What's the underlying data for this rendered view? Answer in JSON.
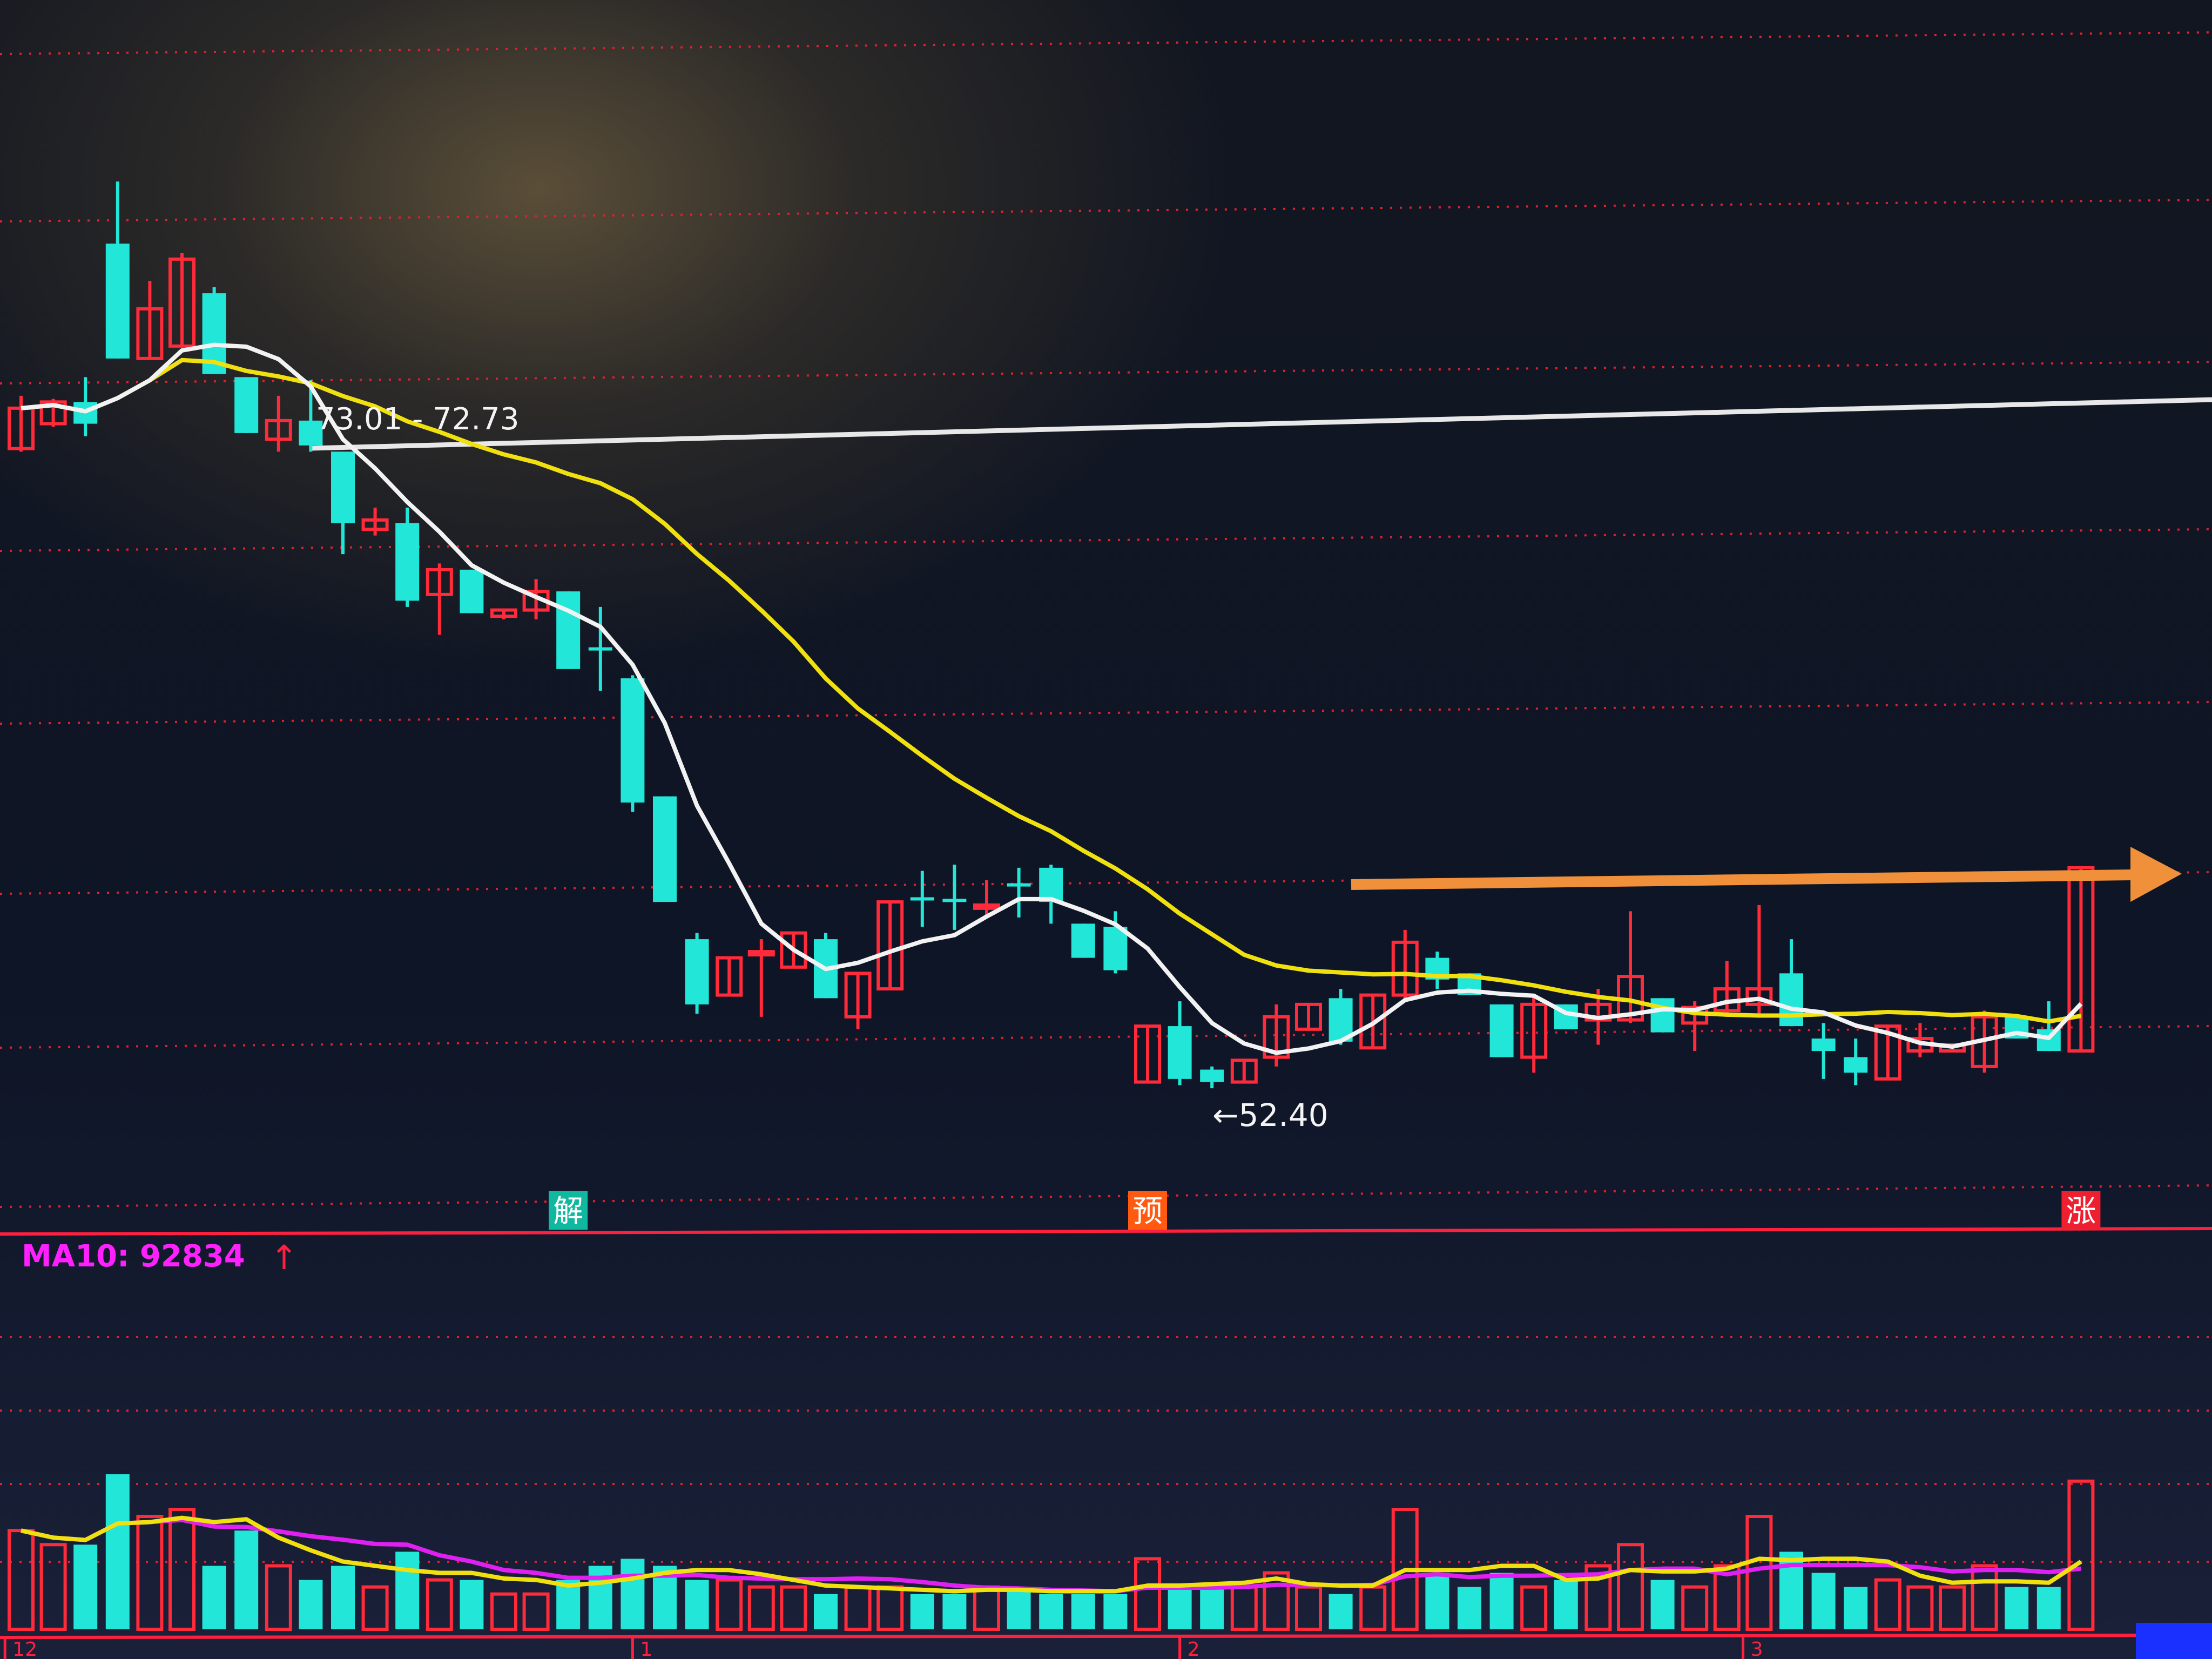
{
  "chart_data": {
    "type": "candlestick",
    "title": "",
    "price_panel": {
      "ylim": [
        47.9,
        87.5
      ],
      "grid": "dotted-red",
      "up_color": "#ff2a3a",
      "down_color": "#22e6d8",
      "ma_short_color": "#f2f2f2",
      "ma_long_color": "#f0e010",
      "candles_ohlc": [
        [
          73.0,
          74.7,
          72.9,
          74.3
        ],
        [
          73.8,
          74.6,
          73.7,
          74.5
        ],
        [
          74.5,
          75.3,
          73.4,
          73.8
        ],
        [
          79.6,
          81.6,
          75.9,
          75.9
        ],
        [
          75.9,
          78.4,
          75.9,
          77.5
        ],
        [
          76.3,
          79.3,
          76.3,
          79.1
        ],
        [
          78.0,
          78.2,
          75.4,
          75.4
        ],
        [
          75.3,
          75.3,
          73.5,
          73.5
        ],
        [
          73.3,
          74.7,
          72.9,
          73.9
        ],
        [
          73.9,
          75.2,
          72.9,
          73.1
        ],
        [
          72.9,
          72.9,
          69.6,
          70.6
        ],
        [
          70.4,
          71.1,
          70.2,
          70.7
        ],
        [
          70.6,
          71.1,
          67.9,
          68.1
        ],
        [
          68.3,
          69.3,
          67.0,
          69.1
        ],
        [
          69.1,
          69.1,
          67.7,
          67.7
        ],
        [
          67.6,
          67.8,
          67.5,
          67.8
        ],
        [
          67.8,
          68.8,
          67.5,
          68.4
        ],
        [
          68.4,
          68.4,
          65.9,
          65.9
        ],
        [
          66.6,
          67.9,
          65.2,
          66.5
        ],
        [
          65.6,
          65.7,
          61.3,
          61.6
        ],
        [
          61.8,
          61.8,
          58.4,
          58.4
        ],
        [
          57.2,
          57.4,
          54.8,
          55.1
        ],
        [
          55.4,
          56.6,
          55.4,
          56.6
        ],
        [
          56.7,
          57.2,
          54.7,
          56.8
        ],
        [
          56.3,
          57.4,
          56.3,
          57.4
        ],
        [
          57.2,
          57.4,
          55.3,
          55.3
        ],
        [
          54.7,
          56.1,
          54.3,
          56.1
        ],
        [
          55.6,
          58.4,
          55.6,
          58.4
        ],
        [
          58.55,
          59.4,
          57.6,
          58.45
        ],
        [
          58.5,
          59.6,
          57.5,
          58.4
        ],
        [
          58.2,
          59.1,
          57.9,
          58.3
        ],
        [
          59.0,
          59.5,
          57.9,
          58.9
        ],
        [
          59.5,
          59.6,
          57.7,
          58.4
        ],
        [
          57.7,
          57.7,
          56.6,
          56.6
        ],
        [
          57.6,
          58.1,
          56.1,
          56.2
        ],
        [
          52.6,
          54.4,
          52.6,
          54.4
        ],
        [
          54.4,
          55.2,
          52.5,
          52.7
        ],
        [
          53.0,
          53.1,
          52.4,
          52.6
        ],
        [
          52.6,
          53.3,
          52.6,
          53.3
        ],
        [
          53.4,
          55.1,
          53.1,
          54.7
        ],
        [
          54.3,
          55.1,
          54.3,
          55.1
        ],
        [
          55.3,
          55.6,
          53.8,
          53.9
        ],
        [
          53.7,
          55.4,
          53.7,
          55.4
        ],
        [
          55.4,
          57.5,
          55.2,
          57.1
        ],
        [
          56.6,
          56.8,
          55.6,
          55.9
        ],
        [
          56.1,
          56.1,
          55.4,
          55.4
        ],
        [
          55.1,
          55.1,
          53.4,
          53.4
        ],
        [
          53.4,
          55.4,
          52.9,
          55.1
        ],
        [
          55.1,
          55.1,
          54.3,
          54.3
        ],
        [
          54.6,
          55.6,
          53.8,
          55.1
        ],
        [
          54.6,
          58.1,
          54.5,
          56.0
        ],
        [
          55.3,
          55.3,
          54.2,
          54.2
        ],
        [
          54.5,
          55.2,
          53.6,
          55.0
        ],
        [
          54.9,
          56.5,
          54.7,
          55.6
        ],
        [
          55.1,
          58.3,
          54.7,
          55.6
        ],
        [
          56.1,
          57.2,
          54.4,
          54.4
        ],
        [
          54.0,
          54.5,
          52.7,
          53.6
        ],
        [
          53.4,
          54.0,
          52.5,
          52.9
        ],
        [
          52.7,
          54.4,
          52.7,
          54.4
        ],
        [
          53.6,
          54.5,
          53.4,
          54.0
        ],
        [
          53.6,
          53.8,
          53.6,
          53.8
        ],
        [
          53.1,
          54.9,
          52.9,
          54.7
        ],
        [
          54.7,
          54.7,
          54.0,
          54.0
        ],
        [
          54.3,
          55.2,
          53.6,
          53.6
        ],
        [
          53.6,
          59.5,
          53.6,
          59.5
        ]
      ],
      "annotations": {
        "range_label": "73.01 - 72.73",
        "range_level": 73.01,
        "low_label": "←52.40",
        "low_value": 52.4,
        "markers": [
          {
            "text": "解",
            "candle": 17,
            "color": "#10b8a0"
          },
          {
            "text": "预",
            "candle": 35,
            "color": "#ff5a10"
          },
          {
            "text": "涨",
            "candle": 64,
            "color": "#ee2030"
          }
        ],
        "arrow_color": "#f0903a",
        "arrow_level": 59.5
      }
    },
    "volume_panel": {
      "legend": "MA10: 92834",
      "legend_arrow": "↑",
      "legend_color": "#ff20ff",
      "ma5_color": "#f0e010",
      "ma10_color": "#e020f0",
      "volumes": [
        175000,
        150000,
        150000,
        275000,
        200000,
        212500,
        112500,
        175000,
        112500,
        87500,
        112500,
        75000,
        137500,
        87500,
        87500,
        62500,
        62500,
        87500,
        112500,
        125000,
        112500,
        87500,
        87500,
        75000,
        75000,
        62500,
        75000,
        75000,
        62500,
        62500,
        75000,
        75000,
        62500,
        62500,
        62500,
        125000,
        75000,
        75000,
        75000,
        100000,
        75000,
        62500,
        75000,
        212500,
        100000,
        75000,
        100000,
        75000,
        87500,
        112500,
        150000,
        87500,
        75000,
        112500,
        200000,
        137500,
        100000,
        75000,
        87500,
        75000,
        75000,
        112500,
        75000,
        75000,
        262500
      ]
    },
    "x_tick_labels": [
      {
        "text": "12",
        "candle": -0.5
      },
      {
        "text": "1",
        "candle": 19
      },
      {
        "text": "2",
        "candle": 36
      },
      {
        "text": "3",
        "candle": 53.5
      }
    ]
  }
}
